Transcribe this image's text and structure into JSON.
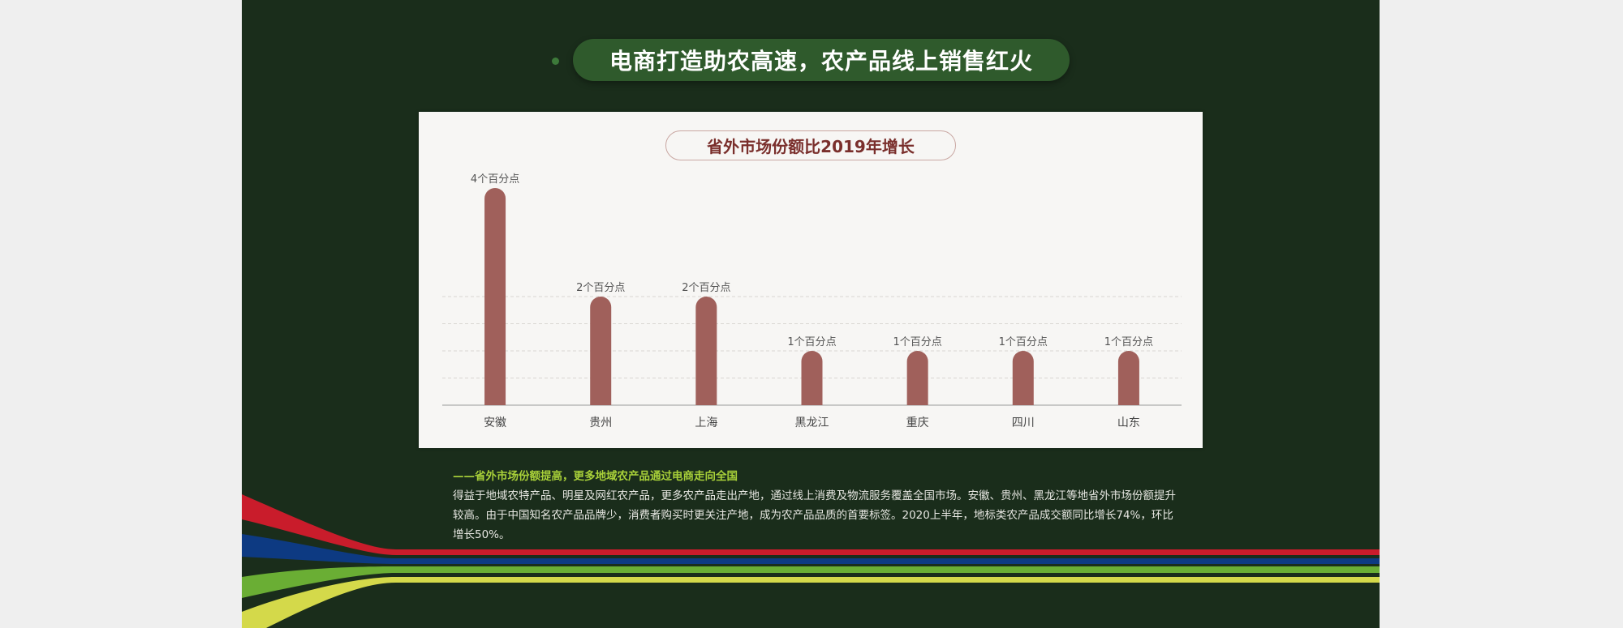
{
  "header": {
    "title": "电商打造助农高速，农产品线上销售红火"
  },
  "chart_data": {
    "type": "bar",
    "title": "省外市场份额比2019年增长",
    "categories": [
      "安徽",
      "贵州",
      "上海",
      "黑龙江",
      "重庆",
      "四川",
      "山东"
    ],
    "values": [
      4,
      2,
      2,
      1,
      1,
      1,
      1
    ],
    "data_labels": [
      "4个百分点",
      "2个百分点",
      "2个百分点",
      "1个百分点",
      "1个百分点",
      "1个百分点",
      "1个百分点"
    ],
    "unit": "百分点",
    "ylim": [
      0,
      4
    ],
    "grid": true,
    "bar_color": "#a0605b"
  },
  "description": {
    "heading": "——省外市场份额提高，更多地域农产品通过电商走向全国",
    "body": "得益于地域农特产品、明星及网红农产品，更多农产品走出产地，通过线上消费及物流服务覆盖全国市场。安徽、贵州、黑龙江等地省外市场份额提升较高。由于中国知名农产品品牌少，消费者购买时更关注产地，成为农产品品质的首要标签。2020上半年，地标类农产品成交额同比增长74%，环比增长50%。"
  },
  "colors": {
    "background": "#1a2d1b",
    "header_pill": "#2f5a2c",
    "highlight": "#a8d039",
    "stripes": [
      "#c91c2b",
      "#0d3a82",
      "#6aae34",
      "#d4d94a"
    ]
  }
}
